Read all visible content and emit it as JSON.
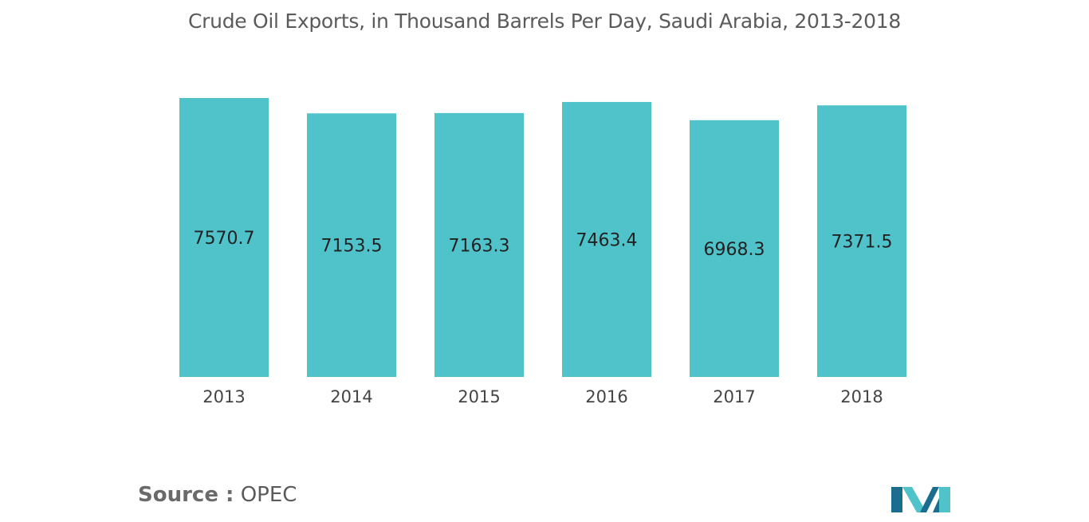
{
  "chart_data": {
    "type": "bar",
    "title": "Crude Oil Exports, in Thousand Barrels Per Day, Saudi Arabia, 2013-2018",
    "categories": [
      "2013",
      "2014",
      "2015",
      "2016",
      "2017",
      "2018"
    ],
    "values": [
      7570.7,
      7153.5,
      7163.3,
      7463.4,
      6968.3,
      7371.5
    ],
    "value_labels": [
      "7570.7",
      "7153.5",
      "7163.3",
      "7463.4",
      "6968.3",
      "7371.5"
    ],
    "xlabel": "",
    "ylabel": "",
    "ylim": [
      0,
      7700
    ],
    "grid": false,
    "legend": "none",
    "bar_color": "#4fc3c9",
    "data_label_position": "center"
  },
  "source": {
    "key": "Source :",
    "value": "OPEC"
  },
  "colors": {
    "title": "#5b5b5b",
    "logo_dark": "#1a6d8f",
    "logo_light": "#4fc3c9"
  }
}
